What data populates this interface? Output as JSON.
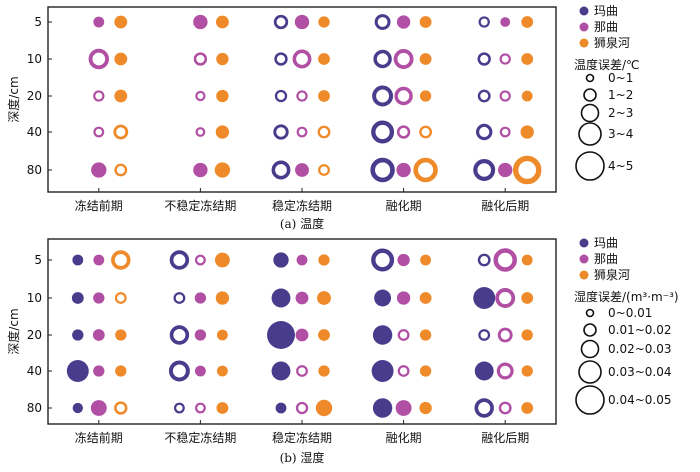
{
  "colors": {
    "maqu": "#4a3c8c",
    "naqu": "#b04fa3",
    "shiquanhe": "#ef8a2a"
  },
  "chart_data": [
    {
      "type": "scatter",
      "caption": "(a) 温度",
      "ylabel": "深度/cm",
      "categories": [
        "冻结前期",
        "不稳定冻结期",
        "稳定冻结期",
        "融化期",
        "融化后期"
      ],
      "depths": [
        "5",
        "10",
        "20",
        "40",
        "80"
      ],
      "legend": {
        "series": [
          "玛曲",
          "那曲",
          "狮泉河"
        ],
        "size_title": "温度误差/℃",
        "size_bins": [
          "0~1",
          "1~2",
          "2~3",
          "3~4",
          "4~5"
        ]
      },
      "series": [
        {
          "name": "玛曲",
          "color_key": "maqu",
          "values": [
            [
              null,
              null,
              1.5,
              1.8,
              0.9
            ],
            [
              null,
              null,
              1.3,
              2.3,
              1.3
            ],
            [
              null,
              null,
              1.1,
              2.8,
              1.2
            ],
            [
              null,
              null,
              1.7,
              3.2,
              1.9
            ],
            [
              null,
              null,
              2.4,
              3.5,
              3.0
            ]
          ],
          "open": [
            [
              true,
              true,
              true,
              true,
              true
            ],
            [
              true,
              true,
              true,
              true,
              true
            ],
            [
              true,
              true,
              true,
              true,
              true
            ],
            [
              true,
              true,
              true,
              true,
              true
            ],
            [
              true,
              true,
              true,
              true,
              true
            ]
          ]
        },
        {
          "name": "那曲",
          "color_key": "naqu",
          "values": [
            [
              0.8,
              1.5,
              1.5,
              1.3,
              0.6
            ],
            [
              2.7,
              1.3,
              2.4,
              2.6,
              0.9
            ],
            [
              0.9,
              0.7,
              0.9,
              2.3,
              0.9
            ],
            [
              0.8,
              0.6,
              0.8,
              1.3,
              0.8
            ],
            [
              1.7,
              1.5,
              1.4,
              1.5,
              1.5
            ]
          ],
          "open": [
            [
              false,
              false,
              false,
              false,
              false
            ],
            [
              true,
              true,
              true,
              true,
              true
            ],
            [
              true,
              true,
              true,
              true,
              true
            ],
            [
              true,
              true,
              true,
              true,
              true
            ],
            [
              false,
              false,
              false,
              false,
              false
            ]
          ]
        },
        {
          "name": "狮泉河",
          "color_key": "shiquanhe",
          "values": [
            [
              1.2,
              1.2,
              0.9,
              1.0,
              1.0
            ],
            [
              1.2,
              1.1,
              1.0,
              1.0,
              1.0
            ],
            [
              1.2,
              1.1,
              1.0,
              0.9,
              0.8
            ],
            [
              1.6,
              1.3,
              1.2,
              1.2,
              1.3
            ],
            [
              1.2,
              1.7,
              1.0,
              3.5,
              4.3
            ]
          ],
          "open": [
            [
              false,
              false,
              false,
              false,
              false
            ],
            [
              false,
              false,
              false,
              false,
              false
            ],
            [
              false,
              false,
              false,
              false,
              false
            ],
            [
              true,
              false,
              true,
              true,
              false
            ],
            [
              true,
              false,
              true,
              true,
              true
            ]
          ]
        }
      ]
    },
    {
      "type": "scatter",
      "caption": "(b) 湿度",
      "ylabel": "深度/cm",
      "categories": [
        "冻结前期",
        "不稳定冻结期",
        "稳定冻结期",
        "融化期",
        "融化后期"
      ],
      "depths": [
        "5",
        "10",
        "20",
        "40",
        "80"
      ],
      "legend": {
        "series": [
          "玛曲",
          "那曲",
          "狮泉河"
        ],
        "size_title": "湿度误差/(m³·m⁻³)",
        "size_bins": [
          "0~0.01",
          "0.01~0.02",
          "0.02~0.03",
          "0.03~0.04",
          "0.04~0.05"
        ]
      },
      "series": [
        {
          "name": "玛曲",
          "color_key": "maqu",
          "values": [
            [
              0.008,
              0.025,
              0.017,
              0.032,
              0.012
            ],
            [
              0.01,
              0.01,
              0.024,
              0.02,
              0.03
            ],
            [
              0.009,
              0.025,
              0.042,
              0.025,
              0.01
            ],
            [
              0.03,
              0.028,
              0.024,
              0.03,
              0.024
            ],
            [
              0.007,
              0.008,
              0.008,
              0.025,
              0.025
            ]
          ],
          "open": [
            [
              false,
              true,
              false,
              true,
              true
            ],
            [
              false,
              true,
              false,
              false,
              false
            ],
            [
              false,
              true,
              false,
              false,
              true
            ],
            [
              false,
              true,
              false,
              false,
              false
            ],
            [
              false,
              true,
              false,
              false,
              true
            ]
          ]
        },
        {
          "name": "那曲",
          "color_key": "naqu",
          "values": [
            [
              0.008,
              0.008,
              0.008,
              0.011,
              0.033
            ],
            [
              0.009,
              0.009,
              0.012,
              0.013,
              0.026
            ],
            [
              0.01,
              0.009,
              0.012,
              0.01,
              0.016
            ],
            [
              0.009,
              0.008,
              0.01,
              0.01,
              0.02
            ],
            [
              0.018,
              0.008,
              0.011,
              0.018,
              0.012
            ]
          ],
          "open": [
            [
              false,
              true,
              false,
              false,
              true
            ],
            [
              false,
              false,
              false,
              false,
              true
            ],
            [
              false,
              false,
              false,
              true,
              true
            ],
            [
              false,
              false,
              true,
              true,
              true
            ],
            [
              false,
              true,
              true,
              false,
              true
            ]
          ]
        },
        {
          "name": "狮泉河",
          "color_key": "shiquanhe",
          "values": [
            [
              0.025,
              0.016,
              0.009,
              0.008,
              0.008
            ],
            [
              0.01,
              0.013,
              0.014,
              0.01,
              0.01
            ],
            [
              0.009,
              0.008,
              0.01,
              0.009,
              0.009
            ],
            [
              0.009,
              0.008,
              0.009,
              0.009,
              0.009
            ],
            [
              0.013,
              0.01,
              0.019,
              0.011,
              0.01
            ]
          ],
          "open": [
            [
              true,
              false,
              false,
              false,
              false
            ],
            [
              true,
              false,
              false,
              false,
              false
            ],
            [
              false,
              false,
              false,
              false,
              false
            ],
            [
              false,
              false,
              false,
              false,
              false
            ],
            [
              true,
              false,
              false,
              false,
              false
            ]
          ]
        }
      ]
    }
  ]
}
